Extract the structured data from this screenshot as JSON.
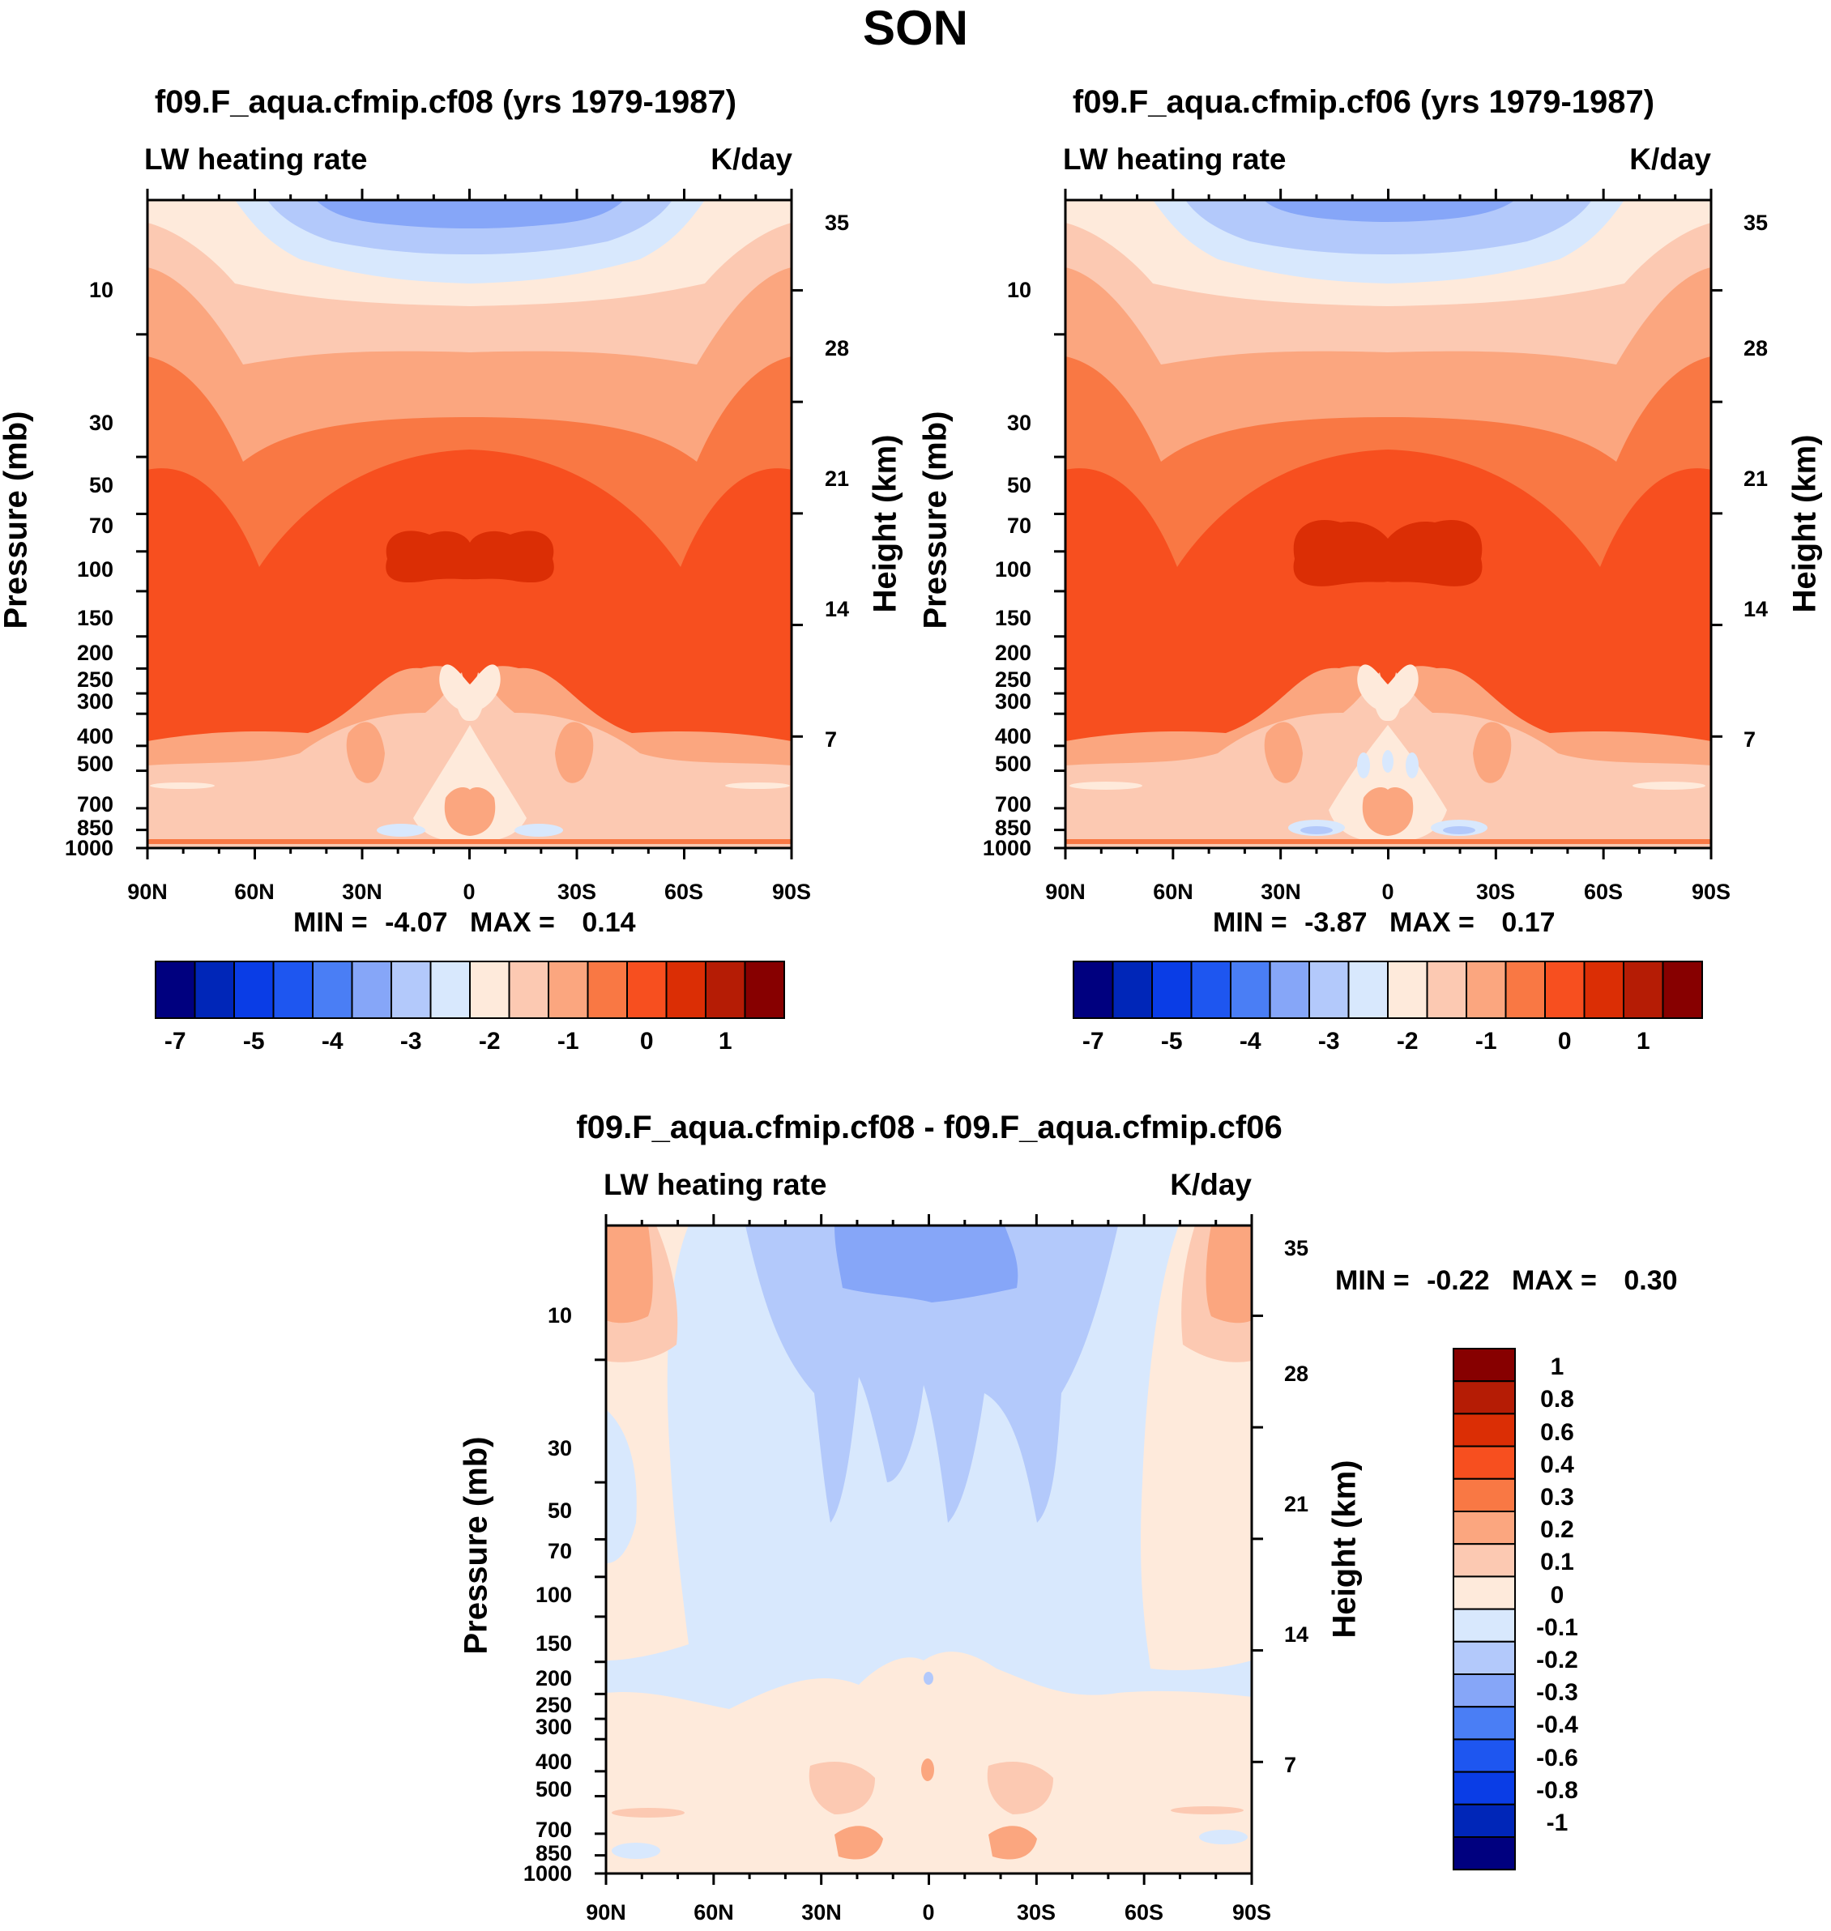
{
  "page_title": "SON",
  "chart_data": [
    {
      "type": "heatmap",
      "id": "panel1",
      "title": "f09.F_aqua.cfmip.cf08 (yrs 1979-1987)",
      "left_subtitle": "LW heating rate",
      "right_subtitle": "K/day",
      "ylabel": "Pressure (mb)",
      "ylabel_right": "Height (km)",
      "x_tick_labels": [
        "90N",
        "60N",
        "30N",
        "0",
        "30S",
        "60S",
        "90S"
      ],
      "x_values": [
        90,
        60,
        30,
        0,
        -30,
        -60,
        -90
      ],
      "pressure_ticks": [
        "10",
        "30",
        "50",
        "70",
        "100",
        "150",
        "200",
        "250",
        "300",
        "400",
        "500",
        "700",
        "850",
        "1000"
      ],
      "pressure_values": [
        10,
        30,
        50,
        70,
        100,
        150,
        200,
        250,
        300,
        400,
        500,
        700,
        850,
        1000
      ],
      "height_ticks": [
        "35",
        "28",
        "21",
        "14",
        "7"
      ],
      "height_values_km": [
        35,
        28,
        21,
        14,
        7
      ],
      "stats": {
        "min_label": "MIN =",
        "min": "-4.07",
        "max_label": "MAX =",
        "max": "0.14"
      },
      "approx_min": -4.07,
      "approx_max": 0.14
    },
    {
      "type": "heatmap",
      "id": "panel2",
      "title": "f09.F_aqua.cfmip.cf06 (yrs 1979-1987)",
      "left_subtitle": "LW heating rate",
      "right_subtitle": "K/day",
      "ylabel": "Pressure (mb)",
      "ylabel_right": "Height (km)",
      "x_tick_labels": [
        "90N",
        "60N",
        "30N",
        "0",
        "30S",
        "60S",
        "90S"
      ],
      "x_values": [
        90,
        60,
        30,
        0,
        -30,
        -60,
        -90
      ],
      "pressure_ticks": [
        "10",
        "30",
        "50",
        "70",
        "100",
        "150",
        "200",
        "250",
        "300",
        "400",
        "500",
        "700",
        "850",
        "1000"
      ],
      "pressure_values": [
        10,
        30,
        50,
        70,
        100,
        150,
        200,
        250,
        300,
        400,
        500,
        700,
        850,
        1000
      ],
      "height_ticks": [
        "35",
        "28",
        "21",
        "14",
        "7"
      ],
      "height_values_km": [
        35,
        28,
        21,
        14,
        7
      ],
      "stats": {
        "min_label": "MIN =",
        "min": "-3.87",
        "max_label": "MAX =",
        "max": "0.17"
      },
      "approx_min": -3.87,
      "approx_max": 0.17
    },
    {
      "type": "heatmap",
      "id": "panel3",
      "title": "f09.F_aqua.cfmip.cf08 - f09.F_aqua.cfmip.cf06",
      "left_subtitle": "LW heating rate",
      "right_subtitle": "K/day",
      "ylabel": "Pressure (mb)",
      "ylabel_right": "Height (km)",
      "x_tick_labels": [
        "90N",
        "60N",
        "30N",
        "0",
        "30S",
        "60S",
        "90S"
      ],
      "x_values": [
        90,
        60,
        30,
        0,
        -30,
        -60,
        -90
      ],
      "pressure_ticks": [
        "10",
        "30",
        "50",
        "70",
        "100",
        "150",
        "200",
        "250",
        "300",
        "400",
        "500",
        "700",
        "850",
        "1000"
      ],
      "pressure_values": [
        10,
        30,
        50,
        70,
        100,
        150,
        200,
        250,
        300,
        400,
        500,
        700,
        850,
        1000
      ],
      "height_ticks": [
        "35",
        "28",
        "21",
        "14",
        "7"
      ],
      "height_values_km": [
        35,
        28,
        21,
        14,
        7
      ],
      "stats": {
        "min_label": "MIN =",
        "min": "-0.22",
        "max_label": "MAX =",
        "max": "0.30"
      },
      "approx_min": -0.22,
      "approx_max": 0.3
    }
  ],
  "colorbar_main": {
    "orientation": "horizontal",
    "colors": [
      "#00007f",
      "#0026b8",
      "#0a3de6",
      "#1e56f0",
      "#4a7ef5",
      "#86a6f8",
      "#b3c9fb",
      "#d8e8fd",
      "#feeadb",
      "#fcc9b2",
      "#fba67f",
      "#f97844",
      "#f74f1f",
      "#db2e05",
      "#b51c05",
      "#870000"
    ],
    "tick_labels": [
      "-7",
      "-5",
      "-4",
      "-3",
      "-2",
      "-1",
      "0",
      "1"
    ],
    "label_boundary_index": [
      1,
      3,
      5,
      7,
      9,
      11,
      13,
      15
    ]
  },
  "colorbar_diff": {
    "orientation": "vertical",
    "colors": [
      "#870000",
      "#b51c05",
      "#db2e05",
      "#f74f1f",
      "#f97844",
      "#fba67f",
      "#fcc9b2",
      "#feeadb",
      "#d8e8fd",
      "#b3c9fb",
      "#86a6f8",
      "#4a7ef5",
      "#1e56f0",
      "#0a3de6",
      "#0026b8",
      "#00007f"
    ],
    "tick_labels": [
      "1",
      "0.8",
      "0.6",
      "0.4",
      "0.3",
      "0.2",
      "0.1",
      "0",
      "-0.1",
      "-0.2",
      "-0.3",
      "-0.4",
      "-0.6",
      "-0.8",
      "-1"
    ]
  }
}
